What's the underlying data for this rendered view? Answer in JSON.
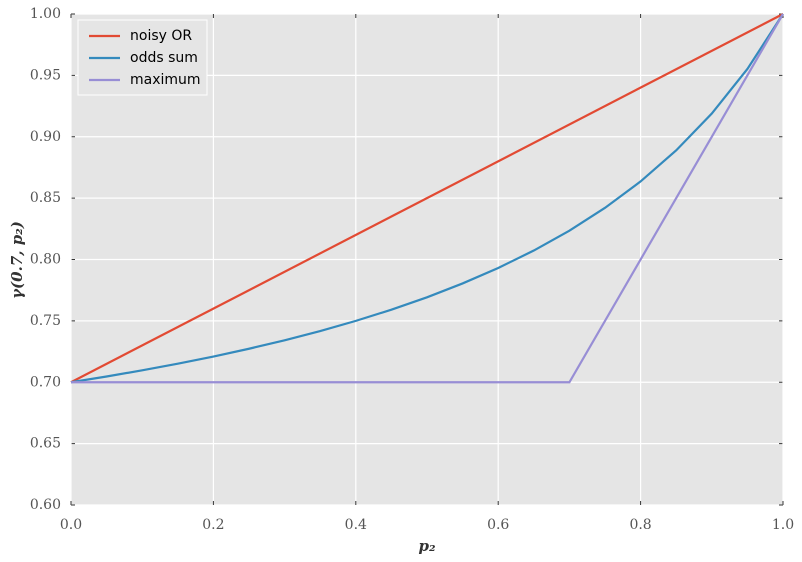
{
  "chart_data": {
    "type": "line",
    "xlabel": "p₂",
    "ylabel": "γ(0.7, p₂)",
    "xlim": [
      0,
      1
    ],
    "ylim": [
      0.6,
      1
    ],
    "xticks": [
      {
        "value": 0,
        "label": "0.0"
      },
      0.2,
      0.4,
      0.6,
      0.8,
      {
        "value": 1,
        "label": "1.0"
      }
    ],
    "yticks": [
      {
        "value": 0.6,
        "label": "0.60"
      },
      0.65,
      {
        "value": 0.7,
        "label": "0.70"
      },
      0.75,
      {
        "value": 0.8,
        "label": "0.80"
      },
      0.85,
      {
        "value": 0.9,
        "label": "0.90"
      },
      0.95,
      {
        "value": 1,
        "label": "1.00"
      }
    ],
    "grid": true,
    "legend": "upper left",
    "series": [
      {
        "name": "noisy OR",
        "color": "#e24a33",
        "x": [
          0,
          1
        ],
        "values": [
          0.7,
          1
        ]
      },
      {
        "name": "odds sum",
        "color": "#348abd",
        "x": [
          0,
          0.05,
          0.1,
          0.15,
          0.2,
          0.25,
          0.3,
          0.35,
          0.4,
          0.45,
          0.5,
          0.55,
          0.6,
          0.65,
          0.7,
          0.75,
          0.8,
          0.85,
          0.9,
          0.95,
          1
        ],
        "values": [
          0.7,
          0.7047,
          0.7097,
          0.7151,
          0.7209,
          0.7273,
          0.7342,
          0.7417,
          0.75,
          0.7591,
          0.7692,
          0.7805,
          0.7931,
          0.8073,
          0.8235,
          0.8421,
          0.8636,
          0.8889,
          0.9189,
          0.9552,
          1
        ]
      },
      {
        "name": "maximum",
        "color": "#988ed5",
        "x": [
          0,
          0.7,
          1
        ],
        "values": [
          0.7,
          0.7,
          1
        ]
      }
    ]
  }
}
